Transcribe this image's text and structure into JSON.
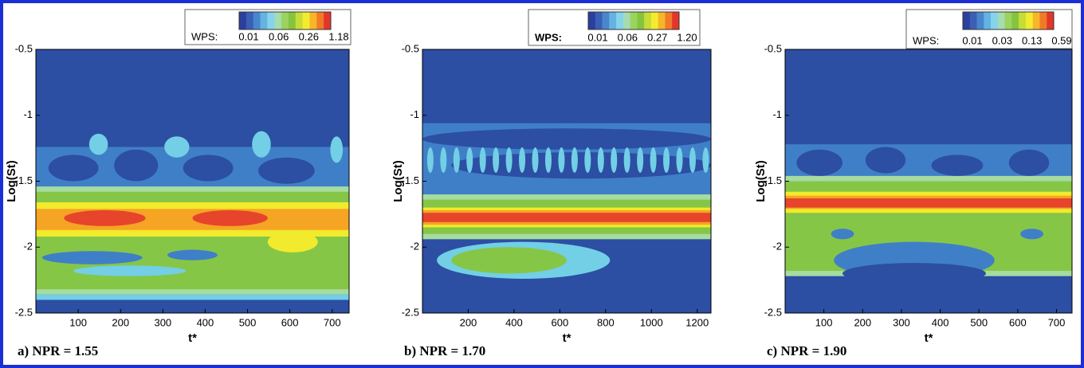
{
  "chart_data": [
    {
      "type": "contour",
      "caption": "a) NPR = 1.55",
      "xlabel": "t*",
      "ylabel": "Log(St)",
      "xlim": [
        0,
        740
      ],
      "xticks": [
        100,
        200,
        300,
        400,
        500,
        600,
        700
      ],
      "ylim": [
        -2.5,
        -0.5
      ],
      "yticks": [
        -2.5,
        -2,
        -1.5,
        -1,
        -0.5
      ],
      "colorbar": {
        "label": "WPS:",
        "ticks": [
          0.01,
          0.06,
          0.26,
          1.18
        ],
        "colors": [
          "#2b3f9e",
          "#3a5fb5",
          "#4a86cc",
          "#63b3e3",
          "#86d3ec",
          "#a5dcb0",
          "#9ad45e",
          "#86c43f",
          "#c7dc36",
          "#f3ec2e",
          "#f7b52a",
          "#f17a28",
          "#e3362a"
        ]
      }
    },
    {
      "type": "contour",
      "caption": "b) NPR = 1.70",
      "xlabel": "t*",
      "ylabel": "Log(St)",
      "xlim": [
        0,
        1260
      ],
      "xticks": [
        200,
        400,
        600,
        800,
        1000,
        1200
      ],
      "ylim": [
        -2.5,
        -0.5
      ],
      "yticks": [
        -2.5,
        -2,
        -1.5,
        -1,
        -0.5
      ],
      "colorbar": {
        "label": "WPS:",
        "ticks": [
          0.01,
          0.06,
          0.27,
          {
            "value": 1.2,
            "label": "1.20"
          }
        ],
        "colors": [
          "#2b3f9e",
          "#3a5fb5",
          "#4a86cc",
          "#63b3e3",
          "#86d3ec",
          "#a5dcb0",
          "#9ad45e",
          "#86c43f",
          "#c7dc36",
          "#f3ec2e",
          "#f7b52a",
          "#f17a28",
          "#e3362a"
        ]
      }
    },
    {
      "type": "contour",
      "caption": "c) NPR = 1.90",
      "xlabel": "t*",
      "ylabel": "Log(St)",
      "xlim": [
        0,
        740
      ],
      "xticks": [
        100,
        200,
        300,
        400,
        500,
        600,
        700
      ],
      "ylim": [
        -2.5,
        -0.5
      ],
      "yticks": [
        -2.5,
        -2,
        -1.5,
        -1,
        -0.5
      ],
      "colorbar": {
        "label": "WPS:",
        "ticks": [
          0.01,
          0.03,
          0.13,
          0.59
        ],
        "colors": [
          "#2b3f9e",
          "#3a5fb5",
          "#4a86cc",
          "#63b3e3",
          "#86d3ec",
          "#a5dcb0",
          "#9ad45e",
          "#86c43f",
          "#c7dc36",
          "#f3ec2e",
          "#f7b52a",
          "#f17a28",
          "#e3362a"
        ]
      }
    }
  ]
}
